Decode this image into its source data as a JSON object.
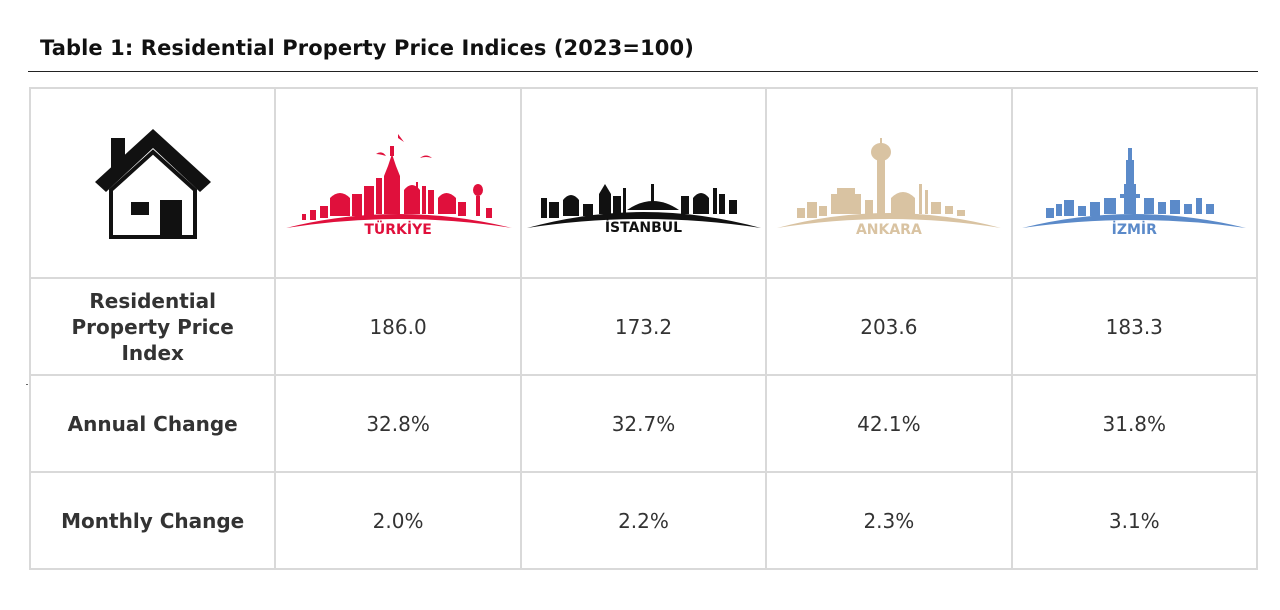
{
  "title": "Table 1: Residential Property Price Indices (2023=100)",
  "icons": {
    "header_icon": "house-icon"
  },
  "colors": {
    "turkiye": "#e0103c",
    "istanbul": "#111111",
    "ankara": "#d9c3a2",
    "izmir": "#5b8ac9"
  },
  "cities": [
    {
      "key": "turkiye",
      "name": "TÜRKİYE",
      "icon": "turkiye-skyline-icon"
    },
    {
      "key": "istanbul",
      "name": "İSTANBUL",
      "icon": "istanbul-skyline-icon"
    },
    {
      "key": "ankara",
      "name": "ANKARA",
      "icon": "ankara-skyline-icon"
    },
    {
      "key": "izmir",
      "name": "İZMİR",
      "icon": "izmir-skyline-icon"
    }
  ],
  "rows": [
    {
      "label": "Residential Property Price Index",
      "values": [
        "186.0",
        "173.2",
        "203.6",
        "183.3"
      ]
    },
    {
      "label": "Annual Change",
      "values": [
        "32.8%",
        "32.7%",
        "42.1%",
        "31.8%"
      ]
    },
    {
      "label": "Monthly Change",
      "values": [
        "2.0%",
        "2.2%",
        "2.3%",
        "3.1%"
      ]
    }
  ]
}
